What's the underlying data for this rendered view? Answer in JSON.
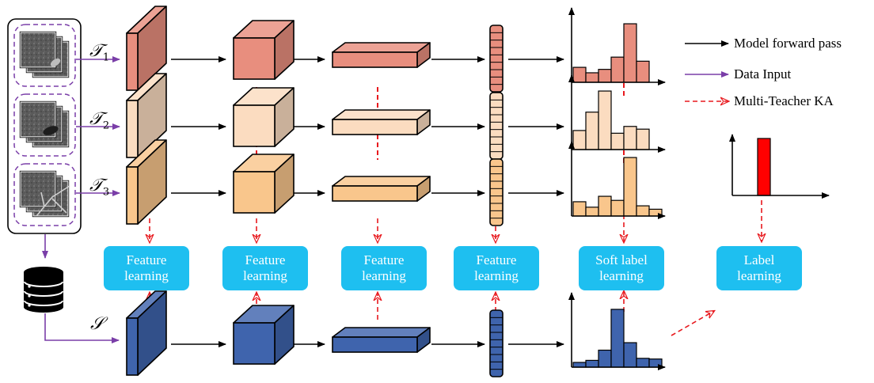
{
  "teachers": [
    {
      "symbol": "𝒯",
      "index": "1"
    },
    {
      "symbol": "𝒯",
      "index": "2"
    },
    {
      "symbol": "𝒯",
      "index": "3"
    }
  ],
  "student_symbol": "𝒮",
  "learning_boxes": [
    "Feature\nlearning",
    "Feature\nlearning",
    "Feature\nlearning",
    "Feature\nlearning",
    "Soft label\nlearning",
    "Label\nlearning"
  ],
  "legend": {
    "forward": "Model forward pass",
    "data_input": "Data Input",
    "ka": "Multi-Teacher KA"
  },
  "colors": {
    "teacher1": "#e88e7e",
    "teacher2": "#fbdcc0",
    "teacher3": "#f9c68c",
    "student": "#3f64ad",
    "box": "#1ebff0",
    "data": "#7a3ea8",
    "ka": "#e8191e",
    "label_bar": "#ff0000"
  },
  "histograms": {
    "teacher1": [
      0.22,
      0.14,
      0.19,
      0.37,
      0.86,
      0.31
    ],
    "teacher2": [
      0.28,
      0.55,
      0.86,
      0.24,
      0.34,
      0.3
    ],
    "teacher3": [
      0.21,
      0.13,
      0.29,
      0.23,
      0.86,
      0.15,
      0.1
    ],
    "student": [
      0.07,
      0.1,
      0.25,
      0.85,
      0.36,
      0.13,
      0.12
    ]
  },
  "label_histogram": [
    1.0
  ]
}
